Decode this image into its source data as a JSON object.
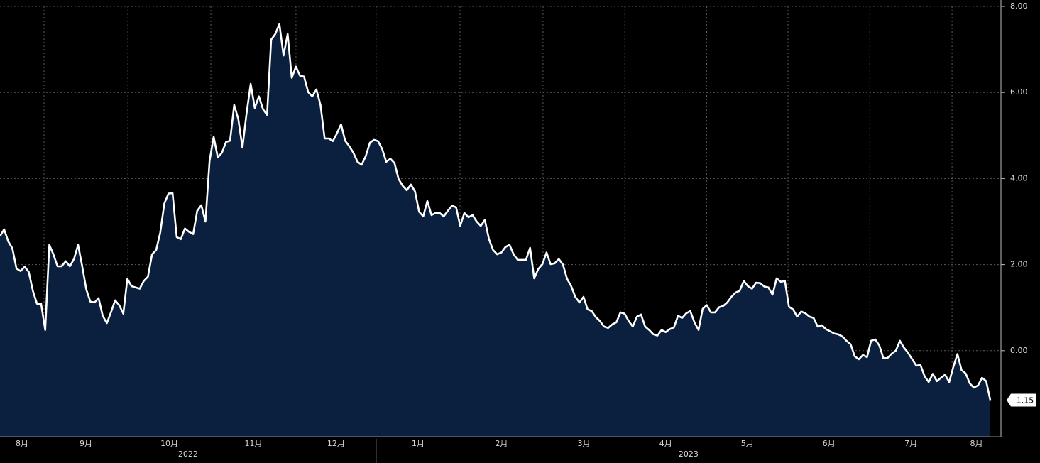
{
  "chart_data": {
    "type": "area",
    "values": [
      2.66,
      2.82,
      2.54,
      2.38,
      1.91,
      1.85,
      1.95,
      1.83,
      1.39,
      1.09,
      1.09,
      0.48,
      2.46,
      2.24,
      1.96,
      1.96,
      2.08,
      1.96,
      2.13,
      2.46,
      1.96,
      1.42,
      1.14,
      1.12,
      1.22,
      0.81,
      0.64,
      0.89,
      1.17,
      1.06,
      0.86,
      1.67,
      1.5,
      1.47,
      1.44,
      1.62,
      1.72,
      2.24,
      2.34,
      2.74,
      3.42,
      3.65,
      3.66,
      2.64,
      2.59,
      2.84,
      2.76,
      2.71,
      3.25,
      3.38,
      3.0,
      4.41,
      4.97,
      4.49,
      4.6,
      4.85,
      4.88,
      5.71,
      5.38,
      4.72,
      5.51,
      6.2,
      5.64,
      5.91,
      5.61,
      5.48,
      7.23,
      7.36,
      7.59,
      6.86,
      7.36,
      6.34,
      6.6,
      6.39,
      6.37,
      6.01,
      5.91,
      6.07,
      5.71,
      4.93,
      4.93,
      4.87,
      5.05,
      5.26,
      4.88,
      4.75,
      4.6,
      4.39,
      4.32,
      4.52,
      4.83,
      4.9,
      4.87,
      4.69,
      4.39,
      4.46,
      4.36,
      3.99,
      3.83,
      3.73,
      3.86,
      3.7,
      3.23,
      3.12,
      3.48,
      3.15,
      3.2,
      3.2,
      3.12,
      3.25,
      3.37,
      3.33,
      2.9,
      3.2,
      3.1,
      3.15,
      3.0,
      2.9,
      3.04,
      2.59,
      2.34,
      2.24,
      2.28,
      2.41,
      2.46,
      2.24,
      2.11,
      2.11,
      2.11,
      2.39,
      1.68,
      1.9,
      2.01,
      2.28,
      2.01,
      2.03,
      2.13,
      2.0,
      1.67,
      1.5,
      1.25,
      1.12,
      1.25,
      0.96,
      0.92,
      0.78,
      0.69,
      0.56,
      0.53,
      0.61,
      0.66,
      0.89,
      0.86,
      0.69,
      0.56,
      0.79,
      0.84,
      0.56,
      0.48,
      0.38,
      0.35,
      0.48,
      0.43,
      0.5,
      0.54,
      0.81,
      0.76,
      0.87,
      0.92,
      0.66,
      0.48,
      0.97,
      1.06,
      0.89,
      0.89,
      1.01,
      1.04,
      1.12,
      1.25,
      1.35,
      1.39,
      1.62,
      1.5,
      1.44,
      1.58,
      1.57,
      1.49,
      1.47,
      1.3,
      1.68,
      1.6,
      1.62,
      1.02,
      0.96,
      0.79,
      0.91,
      0.87,
      0.79,
      0.76,
      0.56,
      0.59,
      0.5,
      0.45,
      0.4,
      0.38,
      0.33,
      0.23,
      0.15,
      -0.13,
      -0.2,
      -0.1,
      -0.15,
      0.23,
      0.26,
      0.12,
      -0.18,
      -0.17,
      -0.07,
      0.0,
      0.23,
      0.07,
      -0.05,
      -0.2,
      -0.35,
      -0.33,
      -0.59,
      -0.73,
      -0.54,
      -0.71,
      -0.63,
      -0.56,
      -0.73,
      -0.38,
      -0.08,
      -0.45,
      -0.53,
      -0.76,
      -0.86,
      -0.81,
      -0.63,
      -0.71,
      -1.15
    ],
    "last_value_label": "-1.15",
    "line_color": "#ffffff",
    "fill_color": "#0b1f3e",
    "xlim": [
      0,
      243.5
    ],
    "xticks": [
      {
        "value": -9.5,
        "label": "8月"
      },
      {
        "value": 10.7,
        "label": "9月"
      },
      {
        "value": 31.1,
        "label": "10月"
      },
      {
        "value": 51.3,
        "label": "11月"
      },
      {
        "value": 72.0,
        "label": "12月"
      },
      {
        "value": 91.5,
        "label": "1月"
      },
      {
        "value": 111.9,
        "label": "2月"
      },
      {
        "value": 132.1,
        "label": "3月"
      },
      {
        "value": 152.0,
        "label": "4月"
      },
      {
        "value": 171.9,
        "label": "5月"
      },
      {
        "value": 191.7,
        "label": "6月"
      },
      {
        "value": 211.6,
        "label": "7月"
      },
      {
        "value": 231.6,
        "label": "8月"
      }
    ],
    "years": [
      "2022",
      "2023"
    ],
    "ylim": [
      -2,
      8
    ],
    "yticks": [
      {
        "value": 0,
        "label": "0.00"
      },
      {
        "value": 2,
        "label": "2.00"
      },
      {
        "value": 4,
        "label": "4.00"
      },
      {
        "value": 6,
        "label": "6.00"
      },
      {
        "value": 8,
        "label": "8.00"
      }
    ],
    "grid": true
  }
}
